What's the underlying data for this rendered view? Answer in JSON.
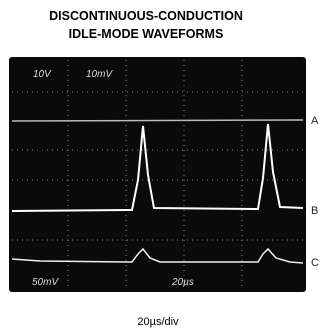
{
  "header": {
    "title_lines": [
      "DISCONTINUOUS-CONDUCTION",
      "IDLE-MODE WAVEFORMS"
    ]
  },
  "scope": {
    "top_labels": [
      "10V",
      "10mV"
    ],
    "bottom_labels": [
      "50mV",
      "20µs"
    ]
  },
  "channels": [
    "A",
    "B",
    "C"
  ],
  "footer": {
    "timebase": "20µs/div"
  }
}
